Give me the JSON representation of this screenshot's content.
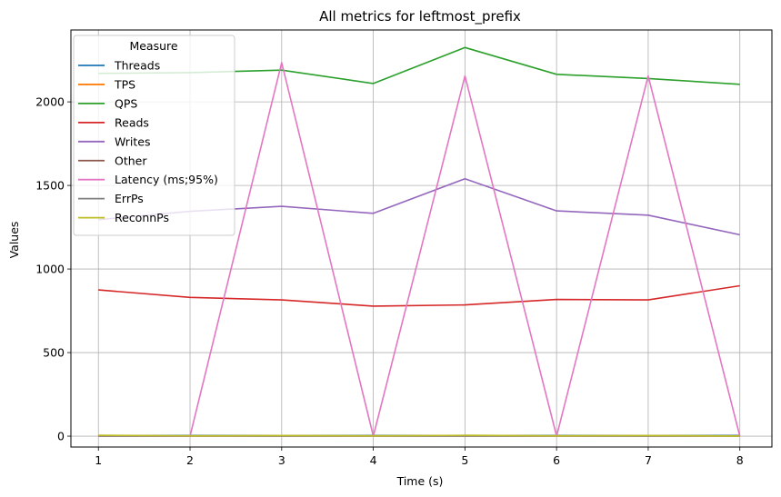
{
  "chart_data": {
    "type": "line",
    "title": "All metrics for leftmost_prefix",
    "xlabel": "Time (s)",
    "ylabel": "Values",
    "x": [
      1,
      2,
      3,
      4,
      5,
      6,
      7,
      8
    ],
    "xlim": [
      0.7,
      8.35
    ],
    "ylim": [
      -65,
      2430
    ],
    "xticks": [
      1,
      2,
      3,
      4,
      5,
      6,
      7,
      8
    ],
    "yticks": [
      0,
      500,
      1000,
      1500,
      2000
    ],
    "grid": true,
    "legend": {
      "title": "Measure",
      "placement": "top-left"
    },
    "series": [
      {
        "name": "Threads",
        "color": "#1f77b4",
        "values": [
          4,
          4,
          4,
          4,
          4,
          4,
          4,
          4
        ]
      },
      {
        "name": "TPS",
        "color": "#ff7f0e",
        "values": [
          1,
          1,
          1,
          1,
          1,
          1,
          1,
          1
        ]
      },
      {
        "name": "QPS",
        "color": "#2ca02c",
        "values": [
          2170,
          2175,
          2190,
          2110,
          2325,
          2165,
          2140,
          2105
        ]
      },
      {
        "name": "Reads",
        "color": "#d62728",
        "values": [
          875,
          830,
          815,
          778,
          785,
          818,
          815,
          900
        ]
      },
      {
        "name": "Writes",
        "color": "#9467bd",
        "values": [
          1295,
          1345,
          1375,
          1333,
          1540,
          1348,
          1322,
          1205
        ]
      },
      {
        "name": "Other",
        "color": "#8c564b",
        "values": [
          2,
          2,
          2,
          2,
          2,
          2,
          2,
          2
        ]
      },
      {
        "name": "Latency (ms;95%)",
        "color": "#e377c2",
        "values": [
          0,
          0,
          2235,
          0,
          2155,
          0,
          2155,
          0
        ]
      },
      {
        "name": "ErrPs",
        "color": "#7f7f7f",
        "values": [
          0,
          0,
          0,
          0,
          0,
          0,
          0,
          0
        ]
      },
      {
        "name": "ReconnPs",
        "color": "#bcbd22",
        "values": [
          5,
          2,
          4,
          2,
          5,
          2,
          4,
          1
        ]
      }
    ]
  }
}
